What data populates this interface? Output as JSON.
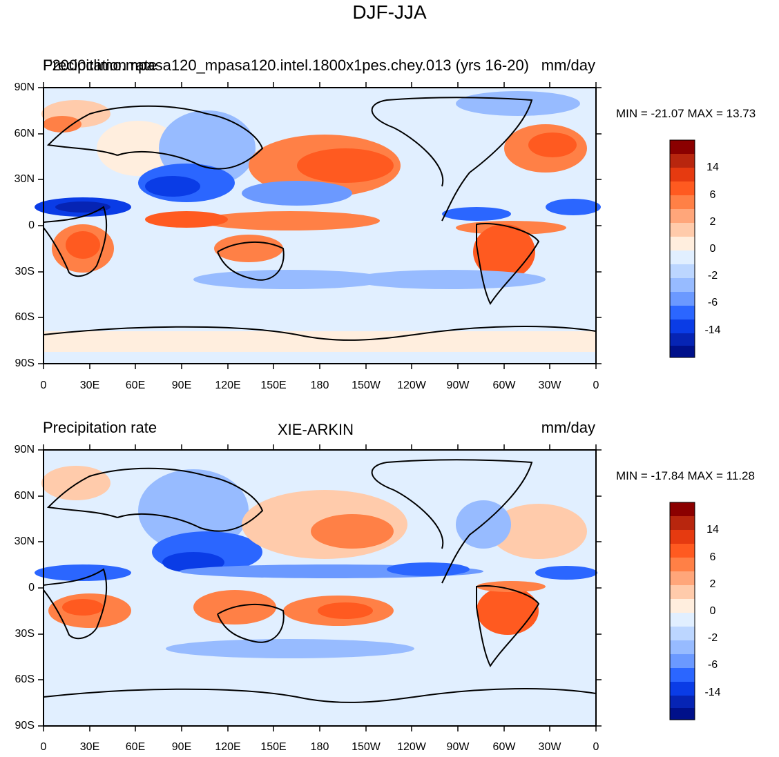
{
  "figure_title": "DJF-JJA",
  "panels": [
    {
      "left_label": "Precipitation rate",
      "center_label": "F2000climo.mpasa120_mpasa120.intel.1800x1pes.chey.013 (yrs 16-20)",
      "right_label": "mm/day",
      "minmax": "MIN = -21.07 MAX =  13.73"
    },
    {
      "left_label": "Precipitation rate",
      "center_label": "XIE-ARKIN",
      "right_label": "mm/day",
      "minmax": "MIN = -17.84 MAX =  11.28"
    }
  ],
  "lat_ticks": [
    "90N",
    "60N",
    "30N",
    "0",
    "30S",
    "60S",
    "90S"
  ],
  "lon_ticks": [
    "0",
    "30E",
    "60E",
    "90E",
    "120E",
    "150E",
    "180",
    "150W",
    "120W",
    "90W",
    "60W",
    "30W",
    "0"
  ],
  "colorbar": {
    "labels": [
      "14",
      "6",
      "2",
      "0",
      "-2",
      "-6",
      "-14"
    ],
    "colors": [
      "#8b0000",
      "#b8260e",
      "#e63a10",
      "#ff5a20",
      "#ff8046",
      "#ffa67a",
      "#ffcbab",
      "#ffeede",
      "#e1efff",
      "#bcd6ff",
      "#97bbff",
      "#6b99ff",
      "#2b66ff",
      "#0a3ce6",
      "#0624b4",
      "#00108a"
    ]
  }
}
